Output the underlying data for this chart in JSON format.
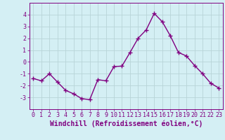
{
  "x": [
    0,
    1,
    2,
    3,
    4,
    5,
    6,
    7,
    8,
    9,
    10,
    11,
    12,
    13,
    14,
    15,
    16,
    17,
    18,
    19,
    20,
    21,
    22,
    23
  ],
  "y": [
    -1.4,
    -1.6,
    -1.0,
    -1.7,
    -2.4,
    -2.7,
    -3.1,
    -3.2,
    -1.5,
    -1.6,
    -0.4,
    -0.35,
    0.8,
    2.0,
    2.7,
    4.1,
    3.4,
    2.2,
    0.8,
    0.5,
    -0.3,
    -1.0,
    -1.8,
    -2.2
  ],
  "line_color": "#800080",
  "marker": "+",
  "bg_color": "#d4eff4",
  "grid_color": "#b8d4d8",
  "xlabel": "Windchill (Refroidissement éolien,°C)",
  "ylim": [
    -4,
    5
  ],
  "xlim": [
    -0.5,
    23.5
  ],
  "yticks": [
    -3,
    -2,
    -1,
    0,
    1,
    2,
    3,
    4
  ],
  "xticks": [
    0,
    1,
    2,
    3,
    4,
    5,
    6,
    7,
    8,
    9,
    10,
    11,
    12,
    13,
    14,
    15,
    16,
    17,
    18,
    19,
    20,
    21,
    22,
    23
  ],
  "xlabel_fontsize": 7.0,
  "tick_fontsize": 6.0,
  "line_width": 1.0,
  "marker_size": 4,
  "marker_edge_width": 1.0
}
